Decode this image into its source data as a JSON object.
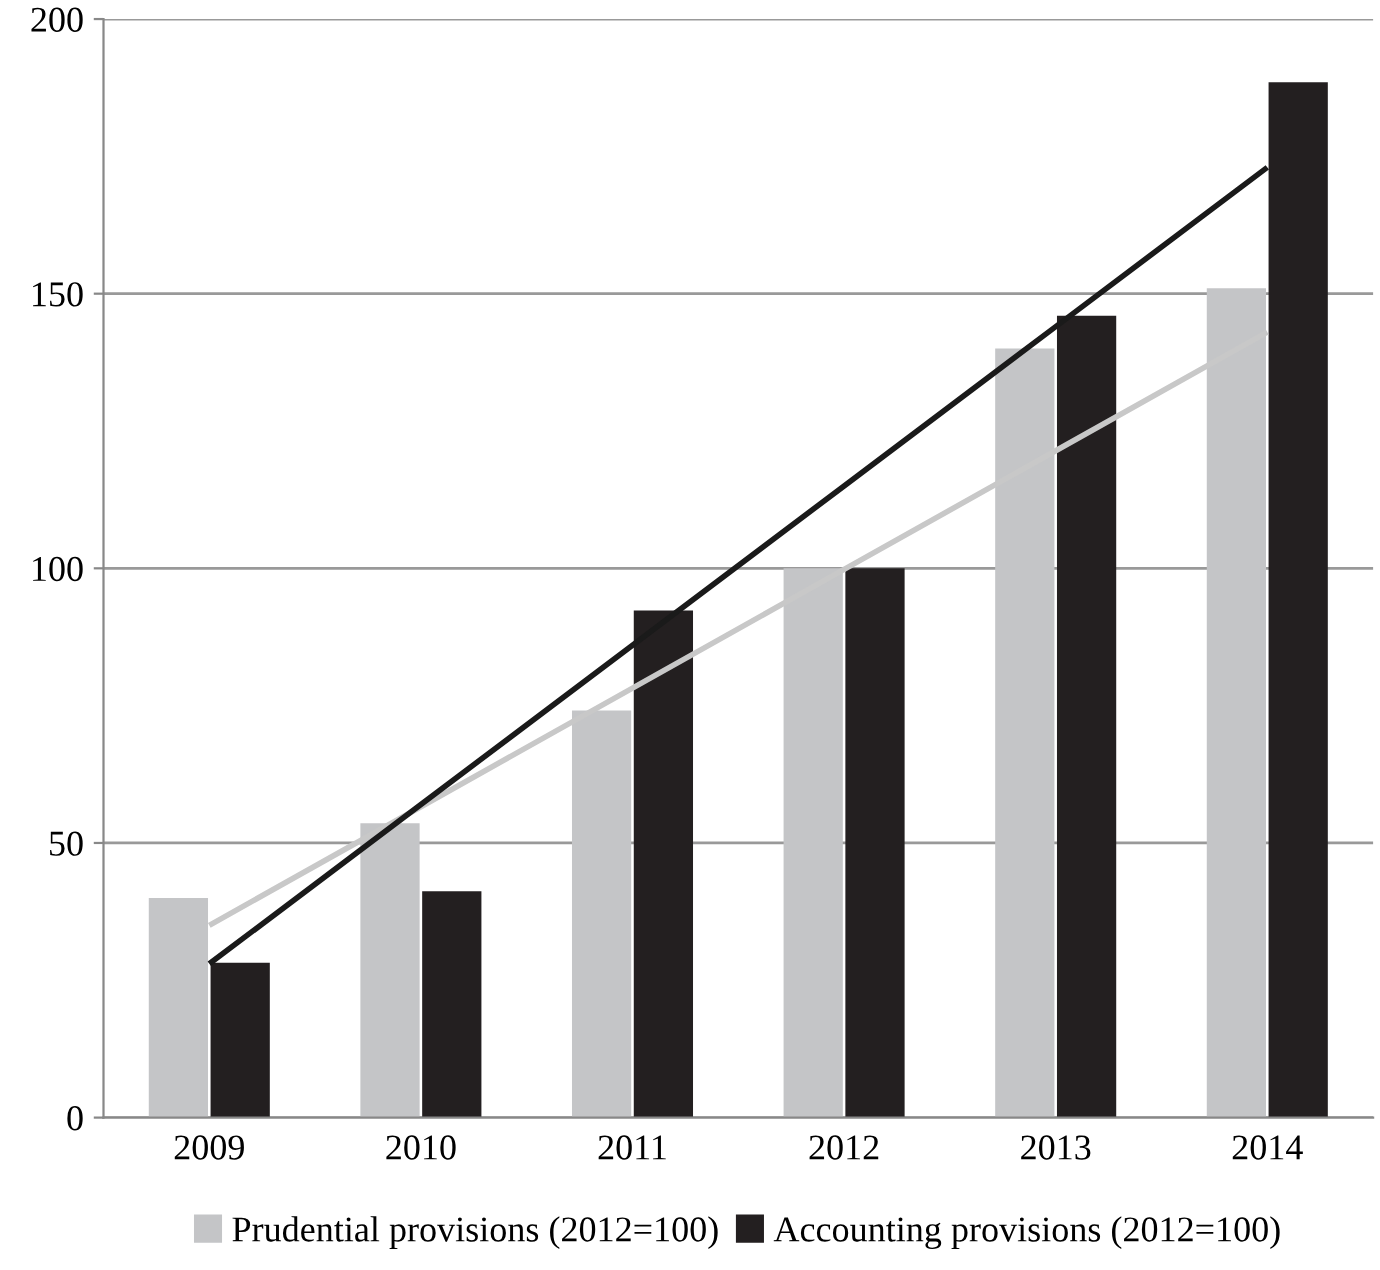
{
  "chart_data": {
    "type": "bar",
    "categories": [
      "2009",
      "2010",
      "2011",
      "2012",
      "2013",
      "2014"
    ],
    "series": [
      {
        "name": "Prudential provisions (2012=100)",
        "color": "#c4c5c7",
        "values": [
          40,
          53.6,
          74.1,
          100,
          140,
          151
        ]
      },
      {
        "name": "Accounting provisions (2012=100)",
        "color": "#231f20",
        "values": [
          28.2,
          41.2,
          92.3,
          100,
          146,
          188.5
        ]
      },
      {
        "type": "line",
        "color": "#c8c8c8",
        "values": [
          35,
          56.6,
          78.2,
          99.8,
          121.4,
          143
        ]
      },
      {
        "type": "line",
        "color": "#1a1a1a",
        "values": [
          28,
          57,
          86,
          115,
          144,
          173
        ]
      }
    ],
    "ylim": [
      0,
      200
    ],
    "yticks": [
      0,
      50,
      100,
      150,
      200
    ],
    "grid": "y",
    "legend": "bottom"
  }
}
